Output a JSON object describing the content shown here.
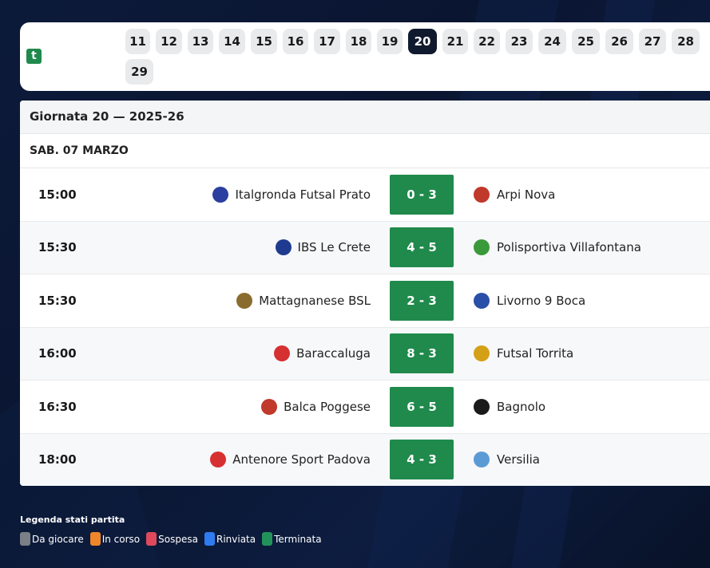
{
  "app": {
    "logo_letter": "t"
  },
  "days": [
    "11",
    "12",
    "13",
    "14",
    "15",
    "16",
    "17",
    "18",
    "19",
    "20",
    "21",
    "22",
    "23",
    "24",
    "25",
    "26",
    "27",
    "28",
    "29"
  ],
  "active_day": "20",
  "round": {
    "title": "Giornata 20 — 2025-26"
  },
  "date": {
    "label": "SAB. 07 MARZO"
  },
  "matches": [
    {
      "time": "15:00",
      "home": "Italgronda Futsal Prato",
      "score": "0 - 3",
      "away": "Arpi Nova",
      "home_color": "#2b3fa0",
      "away_color": "#c0392b"
    },
    {
      "time": "15:30",
      "home": "IBS Le Crete",
      "score": "4 - 5",
      "away": "Polisportiva Villafontana",
      "home_color": "#1f3b8f",
      "away_color": "#3a9a3a"
    },
    {
      "time": "15:30",
      "home": "Mattagnanese BSL",
      "score": "2 - 3",
      "away": "Livorno 9 Boca",
      "home_color": "#8a6d2e",
      "away_color": "#2a4fa8"
    },
    {
      "time": "16:00",
      "home": "Baraccaluga",
      "score": "8 - 3",
      "away": "Futsal Torrita",
      "home_color": "#d63031",
      "away_color": "#d4a017"
    },
    {
      "time": "16:30",
      "home": "Balca Poggese",
      "score": "6 - 5",
      "away": "Bagnolo",
      "home_color": "#c0392b",
      "away_color": "#1a1a1a"
    },
    {
      "time": "18:00",
      "home": "Antenore Sport Padova",
      "score": "4 - 3",
      "away": "Versilia",
      "home_color": "#d63031",
      "away_color": "#5b9bd5"
    }
  ],
  "legend": {
    "title": "Legenda stati partita",
    "items": [
      {
        "label": "Da giocare",
        "color": "#7a8086"
      },
      {
        "label": "In corso",
        "color": "#f0862a"
      },
      {
        "label": "Sospesa",
        "color": "#e0495b"
      },
      {
        "label": "Rinviata",
        "color": "#2f7bf0"
      },
      {
        "label": "Terminata",
        "color": "#22925a"
      }
    ]
  }
}
